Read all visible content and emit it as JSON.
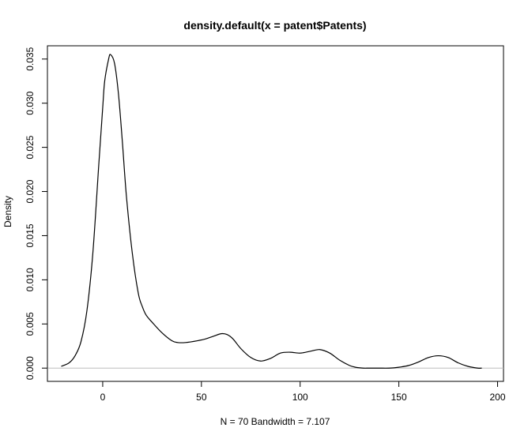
{
  "chart_data": {
    "type": "line",
    "title": "density.default(x = patent$Patents)",
    "xlabel": "N = 70   Bandwidth = 7.107",
    "ylabel": "Density",
    "xlim": [
      -28,
      203
    ],
    "ylim": [
      -0.0015,
      0.0365
    ],
    "x_ticks": [
      0,
      50,
      100,
      150,
      200
    ],
    "y_ticks": [
      0.0,
      0.005,
      0.01,
      0.015,
      0.02,
      0.025,
      0.03,
      0.035
    ],
    "y_tick_labels": [
      "0.000",
      "0.005",
      "0.010",
      "0.015",
      "0.020",
      "0.025",
      "0.030",
      "0.035"
    ],
    "zero_line_color": "#bebebe",
    "line_color": "#000000",
    "grid": false,
    "legend": "none",
    "series": [
      {
        "x": [
          -21,
          -17,
          -14,
          -11,
          -8,
          -5,
          -2,
          0,
          1,
          3,
          4,
          6,
          8,
          10,
          12,
          15,
          18,
          20,
          22,
          25,
          30,
          35,
          38,
          42,
          48,
          52,
          56,
          60,
          63,
          66,
          70,
          75,
          80,
          85,
          90,
          95,
          100,
          105,
          110,
          115,
          120,
          125,
          128,
          132,
          135,
          140,
          145,
          150,
          155,
          160,
          165,
          170,
          175,
          180,
          185,
          190,
          192
        ],
        "y": [
          0.0002,
          0.0006,
          0.0014,
          0.003,
          0.0065,
          0.013,
          0.023,
          0.0295,
          0.0325,
          0.035,
          0.0355,
          0.0345,
          0.031,
          0.0255,
          0.0195,
          0.013,
          0.0085,
          0.007,
          0.006,
          0.0052,
          0.004,
          0.0031,
          0.0029,
          0.0029,
          0.0031,
          0.0033,
          0.0036,
          0.0039,
          0.0038,
          0.0033,
          0.0022,
          0.0012,
          0.0008,
          0.0011,
          0.0017,
          0.0018,
          0.0017,
          0.0019,
          0.0021,
          0.0017,
          0.0009,
          0.0003,
          0.0001,
          0.0,
          0.0,
          0.0,
          0.0,
          0.0001,
          0.0003,
          0.0007,
          0.0012,
          0.0014,
          0.0012,
          0.0006,
          0.0002,
          0.0,
          0.0
        ]
      }
    ]
  }
}
